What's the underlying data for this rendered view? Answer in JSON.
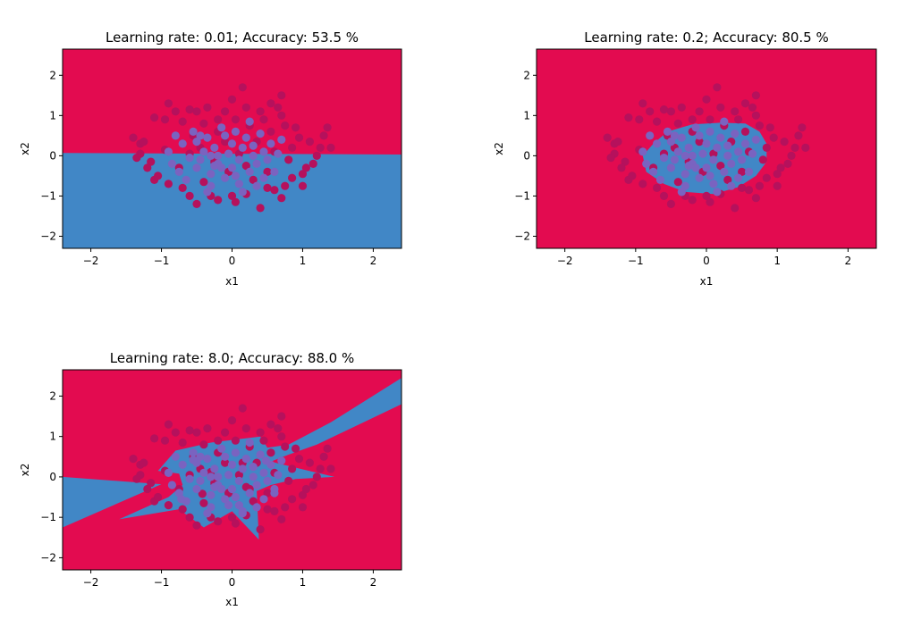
{
  "colors": {
    "class0_region": "#e30b50",
    "class1_region": "#4187c6",
    "class0_point": "#b5115c",
    "class1_point": "#7a63c0",
    "axes": "#000000"
  },
  "chart_data": [
    {
      "type": "scatter",
      "title": "Learning rate: 0.01; Accuracy: 53.5 %",
      "xlabel": "x1",
      "ylabel": "x2",
      "xlim": [
        -2.4,
        2.4
      ],
      "ylim": [
        -2.3,
        2.65
      ],
      "xticks": [
        -2,
        -1,
        0,
        1,
        2
      ],
      "yticks": [
        -2,
        -1,
        0,
        1,
        2
      ],
      "grid": false,
      "background_class": 0,
      "decision_regions": [
        {
          "class": 1,
          "polygon": [
            [
              -2.4,
              0.07
            ],
            [
              2.4,
              0.03
            ],
            [
              2.4,
              -2.3
            ],
            [
              -2.4,
              -2.3
            ]
          ]
        }
      ]
    },
    {
      "type": "scatter",
      "title": "Learning rate: 0.2; Accuracy: 80.5 %",
      "xlabel": "x1",
      "ylabel": "x2",
      "xlim": [
        -2.4,
        2.4
      ],
      "ylim": [
        -2.3,
        2.65
      ],
      "xticks": [
        -2,
        -1,
        0,
        1,
        2
      ],
      "yticks": [
        -2,
        -1,
        0,
        1,
        2
      ],
      "grid": false,
      "background_class": 0,
      "decision_regions": [
        {
          "class": 1,
          "polygon": [
            [
              -0.75,
              0.3
            ],
            [
              -0.55,
              0.6
            ],
            [
              -0.2,
              0.78
            ],
            [
              0.2,
              0.82
            ],
            [
              0.55,
              0.8
            ],
            [
              0.75,
              0.6
            ],
            [
              0.85,
              0.3
            ],
            [
              0.85,
              -0.15
            ],
            [
              0.7,
              -0.5
            ],
            [
              0.45,
              -0.78
            ],
            [
              0.1,
              -0.95
            ],
            [
              -0.3,
              -0.9
            ],
            [
              -0.6,
              -0.7
            ],
            [
              -0.85,
              -0.4
            ],
            [
              -0.9,
              0.0
            ]
          ]
        }
      ]
    },
    {
      "type": "scatter",
      "title": "Learning rate: 8.0; Accuracy: 88.0 %",
      "xlabel": "x1",
      "ylabel": "x2",
      "xlim": [
        -2.4,
        2.4
      ],
      "ylim": [
        -2.3,
        2.65
      ],
      "xticks": [
        -2,
        -1,
        0,
        1,
        2
      ],
      "yticks": [
        -2,
        -1,
        0,
        1,
        2
      ],
      "grid": false,
      "background_class": 0,
      "decision_regions": [
        {
          "class": 1,
          "polygon": [
            [
              -2.4,
              0.0
            ],
            [
              -1.0,
              -0.18
            ],
            [
              -2.4,
              -1.25
            ]
          ]
        },
        {
          "class": 1,
          "polygon": [
            [
              -1.05,
              0.15
            ],
            [
              -0.8,
              0.65
            ],
            [
              -0.3,
              0.85
            ],
            [
              0.4,
              1.0
            ],
            [
              0.5,
              0.72
            ],
            [
              0.8,
              0.8
            ],
            [
              1.4,
              1.35
            ],
            [
              2.4,
              2.45
            ],
            [
              2.4,
              1.8
            ],
            [
              1.2,
              0.8
            ],
            [
              0.8,
              0.55
            ],
            [
              0.55,
              0.38
            ],
            [
              0.85,
              0.25
            ],
            [
              1.45,
              0.0
            ],
            [
              0.9,
              -0.05
            ],
            [
              0.55,
              -0.2
            ],
            [
              0.35,
              -0.35
            ],
            [
              0.38,
              -1.55
            ],
            [
              0.0,
              -0.85
            ],
            [
              -0.4,
              -1.25
            ],
            [
              -0.75,
              -0.8
            ],
            [
              -1.6,
              -1.05
            ],
            [
              -0.9,
              -0.5
            ],
            [
              -0.7,
              -0.2
            ],
            [
              -0.75,
              0.08
            ]
          ]
        }
      ],
      "class0_points": [
        [
          -0.3,
          0.12
        ],
        [
          0.15,
          0.35
        ],
        [
          0.25,
          -0.3
        ],
        [
          -0.42,
          -0.42
        ]
      ],
      "class1_points": [
        [
          -0.72,
          -0.55
        ],
        [
          -0.55,
          0.42
        ],
        [
          0.48,
          0.4
        ],
        [
          0.15,
          -0.85
        ],
        [
          -0.05,
          -0.7
        ],
        [
          0.6,
          -0.3
        ]
      ]
    }
  ],
  "points": {
    "class0": [
      [
        -1.3,
        0.3
      ],
      [
        -1.4,
        0.45
      ],
      [
        -1.25,
        0.35
      ],
      [
        -1.3,
        0.05
      ],
      [
        -1.35,
        -0.05
      ],
      [
        -1.15,
        -0.15
      ],
      [
        -1.1,
        -0.6
      ],
      [
        -1.05,
        -0.5
      ],
      [
        -0.9,
        -0.7
      ],
      [
        -0.7,
        -0.8
      ],
      [
        -0.6,
        -1.0
      ],
      [
        -0.5,
        -1.2
      ],
      [
        -0.3,
        -1.0
      ],
      [
        -0.2,
        -1.1
      ],
      [
        0.0,
        -1.0
      ],
      [
        0.05,
        -1.15
      ],
      [
        0.2,
        -0.95
      ],
      [
        0.4,
        -1.3
      ],
      [
        0.5,
        -0.8
      ],
      [
        0.6,
        -0.85
      ],
      [
        0.7,
        -1.05
      ],
      [
        0.75,
        -0.75
      ],
      [
        0.85,
        -0.55
      ],
      [
        1.0,
        -0.45
      ],
      [
        1.05,
        -0.3
      ],
      [
        1.15,
        -0.2
      ],
      [
        1.2,
        0.0
      ],
      [
        1.25,
        0.2
      ],
      [
        1.4,
        0.2
      ],
      [
        1.3,
        0.5
      ],
      [
        1.35,
        0.7
      ],
      [
        1.1,
        0.35
      ],
      [
        0.95,
        0.45
      ],
      [
        0.9,
        0.7
      ],
      [
        0.75,
        0.75
      ],
      [
        0.7,
        1.0
      ],
      [
        0.65,
        1.2
      ],
      [
        0.7,
        1.5
      ],
      [
        0.55,
        1.3
      ],
      [
        0.4,
        1.1
      ],
      [
        0.2,
        1.2
      ],
      [
        0.15,
        1.7
      ],
      [
        0.0,
        1.4
      ],
      [
        -0.1,
        1.1
      ],
      [
        -0.2,
        0.9
      ],
      [
        -0.35,
        1.2
      ],
      [
        -0.5,
        1.1
      ],
      [
        -0.6,
        1.15
      ],
      [
        -0.8,
        1.1
      ],
      [
        -0.9,
        1.3
      ],
      [
        -0.95,
        0.9
      ],
      [
        -1.1,
        0.95
      ],
      [
        -0.7,
        0.85
      ],
      [
        -0.4,
        0.8
      ],
      [
        -0.55,
        0.5
      ],
      [
        -0.2,
        0.6
      ],
      [
        0.25,
        0.75
      ],
      [
        0.55,
        0.6
      ],
      [
        0.85,
        0.2
      ],
      [
        0.8,
        -0.1
      ],
      [
        0.5,
        -0.4
      ],
      [
        0.3,
        -0.6
      ],
      [
        -0.05,
        -0.4
      ],
      [
        -0.4,
        -0.65
      ],
      [
        -0.75,
        -0.3
      ],
      [
        -0.95,
        0.15
      ],
      [
        -0.6,
        0.05
      ],
      [
        -0.25,
        -0.15
      ],
      [
        0.1,
        0.05
      ],
      [
        0.35,
        0.35
      ],
      [
        -0.1,
        0.35
      ],
      [
        0.6,
        0.1
      ],
      [
        1.0,
        -0.75
      ],
      [
        -1.2,
        -0.3
      ],
      [
        0.05,
        0.9
      ],
      [
        0.45,
        0.9
      ],
      [
        -0.45,
        0.2
      ],
      [
        0.2,
        -0.25
      ]
    ],
    "class1": [
      [
        -0.9,
        0.1
      ],
      [
        -0.85,
        -0.2
      ],
      [
        -0.75,
        -0.4
      ],
      [
        -0.7,
        0.3
      ],
      [
        -0.65,
        -0.6
      ],
      [
        -0.55,
        0.6
      ],
      [
        -0.5,
        0.35
      ],
      [
        -0.5,
        -0.3
      ],
      [
        -0.45,
        -0.1
      ],
      [
        -0.4,
        0.1
      ],
      [
        -0.35,
        0.45
      ],
      [
        -0.3,
        -0.45
      ],
      [
        -0.3,
        -0.75
      ],
      [
        -0.25,
        0.2
      ],
      [
        -0.2,
        -0.2
      ],
      [
        -0.15,
        0.7
      ],
      [
        -0.1,
        0.5
      ],
      [
        -0.1,
        -0.55
      ],
      [
        -0.05,
        0.05
      ],
      [
        0.0,
        -0.3
      ],
      [
        0.0,
        0.3
      ],
      [
        0.05,
        0.6
      ],
      [
        0.1,
        -0.1
      ],
      [
        0.1,
        -0.7
      ],
      [
        0.15,
        0.2
      ],
      [
        0.2,
        0.45
      ],
      [
        0.25,
        -0.4
      ],
      [
        0.3,
        0.0
      ],
      [
        0.3,
        0.25
      ],
      [
        0.35,
        -0.2
      ],
      [
        0.4,
        0.55
      ],
      [
        0.45,
        0.1
      ],
      [
        0.45,
        -0.55
      ],
      [
        0.5,
        -0.1
      ],
      [
        0.55,
        0.3
      ],
      [
        0.6,
        -0.4
      ],
      [
        0.65,
        0.05
      ],
      [
        0.7,
        0.4
      ],
      [
        -0.6,
        -0.05
      ],
      [
        -0.35,
        -0.9
      ],
      [
        0.15,
        -0.9
      ],
      [
        -0.8,
        0.5
      ],
      [
        0.25,
        0.85
      ],
      [
        -0.2,
        0.0
      ],
      [
        -0.25,
        -0.25
      ],
      [
        -0.15,
        -0.3
      ],
      [
        -0.3,
        0.0
      ],
      [
        0.05,
        -0.5
      ],
      [
        -0.45,
        0.5
      ],
      [
        0.35,
        -0.75
      ]
    ]
  }
}
